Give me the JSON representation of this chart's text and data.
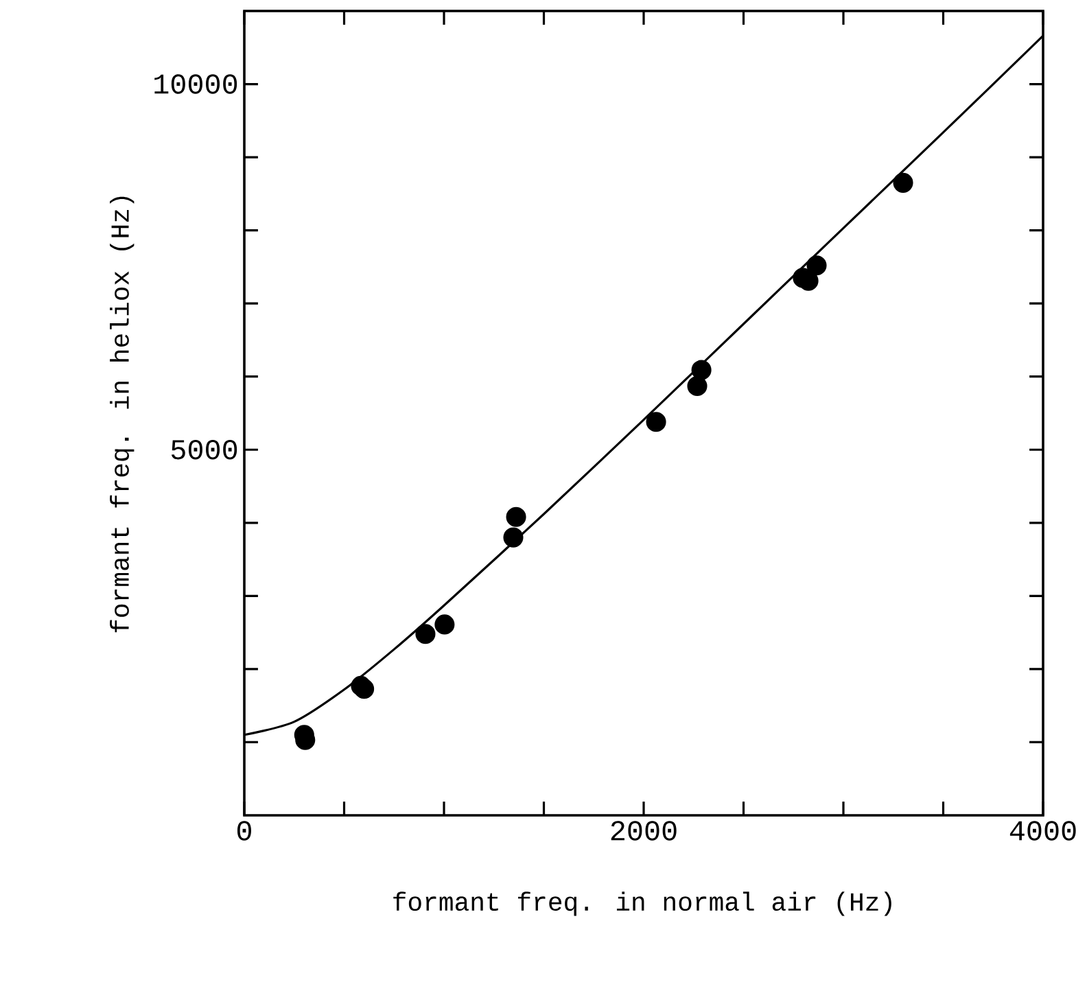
{
  "chart_data": {
    "type": "scatter",
    "xlabel": "formant freq. in normal air (Hz)",
    "ylabel": "formant freq. in heliox (Hz)",
    "xlim": [
      0,
      4000
    ],
    "ylim": [
      0,
      11000
    ],
    "xticks": [
      0,
      {
        "value": 500,
        "label": null
      },
      {
        "value": 1000,
        "label": null
      },
      {
        "value": 1500,
        "label": null
      },
      2000,
      {
        "value": 2500,
        "label": null
      },
      {
        "value": 3000,
        "label": null
      },
      {
        "value": 3500,
        "label": null
      },
      4000
    ],
    "yticks": [
      {
        "value": 1000,
        "label": null
      },
      {
        "value": 2000,
        "label": null
      },
      {
        "value": 3000,
        "label": null
      },
      {
        "value": 4000,
        "label": null
      },
      5000,
      {
        "value": 6000,
        "label": null
      },
      {
        "value": 7000,
        "label": null
      },
      {
        "value": 8000,
        "label": null
      },
      {
        "value": 9000,
        "label": null
      },
      10000
    ],
    "grid": false,
    "series": [
      {
        "type": "scatter",
        "marker": "circle",
        "color": "#000000",
        "x": [
          300,
          305,
          584,
          600,
          907,
          1003,
          1347,
          1361,
          2062,
          2268,
          2289,
          2797,
          2825,
          2866,
          3299
        ],
        "values": [
          1100,
          1030,
          1770,
          1730,
          2480,
          2610,
          3800,
          4080,
          5380,
          5870,
          6090,
          7350,
          7310,
          7520,
          8650
        ]
      },
      {
        "type": "line",
        "color": "#000000",
        "line_style": "solid",
        "x": [
          0,
          250,
          500,
          750,
          1000,
          1500,
          2000,
          2500,
          3000,
          3500,
          4000
        ],
        "values": [
          1100,
          1280,
          1720,
          2270,
          2870,
          4120,
          5410,
          6720,
          8030,
          9340,
          10660
        ]
      }
    ]
  }
}
